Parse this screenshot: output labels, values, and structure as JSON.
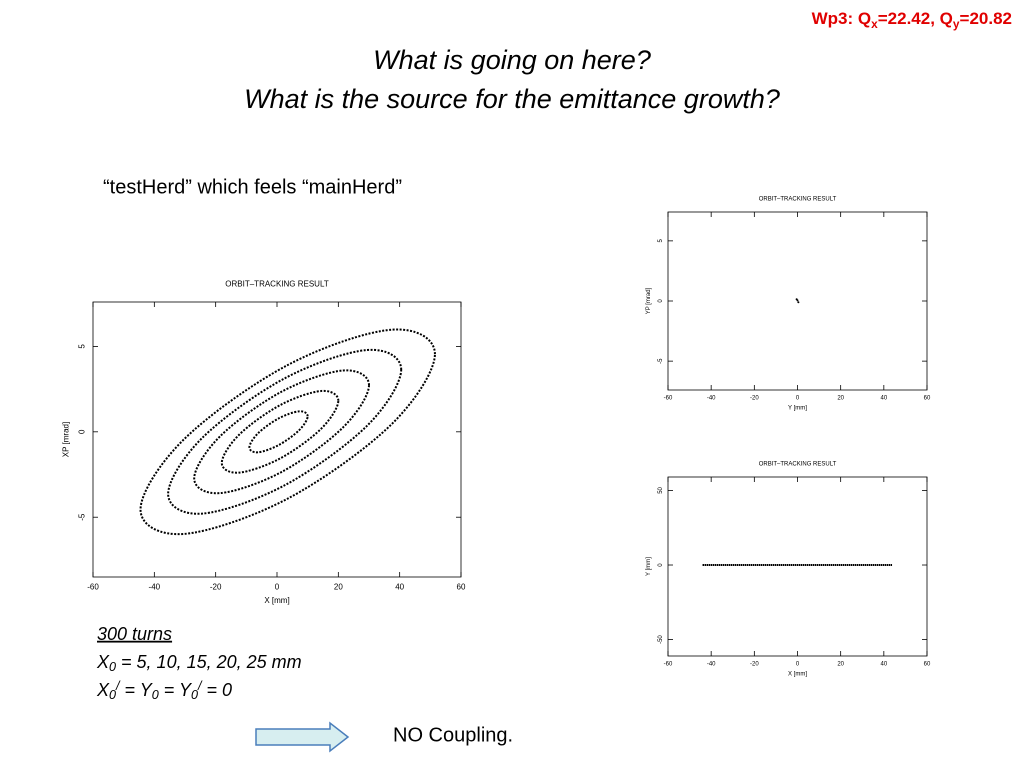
{
  "header": {
    "parts": [
      "Wp3: Q",
      "x",
      "=22.42, Q",
      "y",
      "=20.82"
    ]
  },
  "title": [
    "What is going on here?",
    "What is the source for the emittance growth?"
  ],
  "subtitle": "“testHerd” which feels “mainHerd”",
  "notes": {
    "turns": "300 turns",
    "initial": [
      "X",
      "0",
      " = 5, 10, 15, 20, 25 mm"
    ],
    "zero": [
      "X",
      "0",
      "/",
      " = Y",
      "0",
      " = Y",
      "0",
      "/",
      " = 0"
    ]
  },
  "conclusion": "NO Coupling.",
  "chart_data": [
    {
      "type": "orbit",
      "title": "ORBIT–TRACKING RESULT",
      "x_label": "X [mm]",
      "y_label": "XP [mrad]",
      "xlim": [
        -60,
        60
      ],
      "ylim": [
        -8.5,
        7.6
      ],
      "xticks": [
        -60,
        -40,
        -20,
        0,
        20,
        40,
        60
      ],
      "yticks": [
        -5,
        0,
        5
      ],
      "series": [
        {
          "color": "#000000",
          "x": [
            10,
            7.2,
            0.5,
            -6.2,
            -9,
            -6.2,
            0.5,
            7.2
          ],
          "values": [
            0.91,
            1.2,
            0.78,
            -0.09,
            -0.91,
            -1.2,
            -0.78,
            0.09
          ]
        },
        {
          "color": "#000000",
          "x": [
            20,
            14.4,
            1,
            -12.4,
            -18,
            -12.4,
            1,
            14.4
          ],
          "values": [
            1.82,
            2.39,
            1.56,
            -0.18,
            -1.82,
            -2.39,
            -1.56,
            0.18
          ]
        },
        {
          "color": "#000000",
          "x": [
            30,
            21.6,
            1.5,
            -18.6,
            -27,
            -18.6,
            1.5,
            21.6
          ],
          "values": [
            2.73,
            3.59,
            2.35,
            -0.27,
            -2.73,
            -3.59,
            -2.35,
            0.27
          ]
        },
        {
          "color": "#000000",
          "x": [
            40.5,
            29.4,
            2.5,
            -24.4,
            -35.5,
            -24.4,
            2.5,
            29.4
          ],
          "values": [
            3.64,
            4.79,
            3.13,
            -0.36,
            -3.64,
            -4.79,
            -3.13,
            0.36
          ]
        },
        {
          "color": "#000000",
          "x": [
            51.5,
            37.4,
            3.5,
            -30.4,
            -44.5,
            -30.4,
            3.5,
            37.4
          ],
          "values": [
            4.55,
            5.98,
            3.91,
            -0.45,
            -4.55,
            -5.98,
            -3.91,
            0.45
          ]
        }
      ]
    },
    {
      "type": "scatter",
      "title": "ORBIT–TRACKING RESULT",
      "x_label": "Y [mm]",
      "y_label": "YP [mrad]",
      "xlim": [
        -60,
        60
      ],
      "ylim": [
        -7.4,
        7.4
      ],
      "xticks": [
        -60,
        -40,
        -20,
        0,
        20,
        40,
        60
      ],
      "yticks": [
        -5,
        0,
        5
      ],
      "series": [
        {
          "color": "#000000",
          "x": [
            -0.4,
            0,
            0.4
          ],
          "values": [
            0.15,
            0.05,
            -0.1
          ]
        }
      ]
    },
    {
      "type": "line",
      "title": "ORBIT–TRACKING RESULT",
      "x_label": "X [mm]",
      "y_label": "Y [mm]",
      "xlim": [
        -60,
        60
      ],
      "ylim": [
        -61,
        59
      ],
      "xticks": [
        -60,
        -40,
        -20,
        0,
        20,
        40,
        60
      ],
      "yticks": [
        -50,
        0,
        50
      ],
      "series": [
        {
          "color": "#000000",
          "x": [
            -44,
            44
          ],
          "values": [
            0,
            0
          ]
        }
      ]
    }
  ]
}
